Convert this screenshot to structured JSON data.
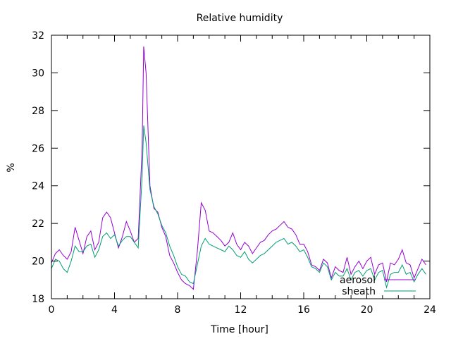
{
  "chart_data": {
    "type": "line",
    "title": "Relative humidity",
    "xlabel": "Time [hour]",
    "ylabel": "%",
    "xlim": [
      0,
      24
    ],
    "ylim": [
      18,
      32
    ],
    "xticks": [
      "0",
      "4",
      "8",
      "12",
      "16",
      "20",
      "24"
    ],
    "yticks": [
      "18",
      "20",
      "22",
      "24",
      "26",
      "28",
      "30",
      "32"
    ],
    "legend_position": "bottom-right",
    "grid": false,
    "x": [
      0,
      0.25,
      0.5,
      0.75,
      1,
      1.25,
      1.5,
      1.75,
      2,
      2.25,
      2.5,
      2.75,
      3,
      3.25,
      3.5,
      3.75,
      4,
      4.25,
      4.5,
      4.75,
      5,
      5.25,
      5.5,
      5.75,
      5.85,
      6,
      6.25,
      6.5,
      6.75,
      7,
      7.25,
      7.5,
      7.75,
      8,
      8.25,
      8.5,
      8.75,
      9,
      9.25,
      9.5,
      9.75,
      10,
      10.25,
      10.5,
      10.75,
      11,
      11.25,
      11.5,
      11.75,
      12,
      12.25,
      12.5,
      12.75,
      13,
      13.25,
      13.5,
      13.75,
      14,
      14.25,
      14.5,
      14.75,
      15,
      15.25,
      15.5,
      15.75,
      16,
      16.25,
      16.5,
      16.75,
      17,
      17.25,
      17.5,
      17.75,
      18,
      18.25,
      18.5,
      18.75,
      19,
      19.25,
      19.5,
      19.75,
      20,
      20.25,
      20.5,
      20.75,
      21,
      21.25,
      21.5,
      21.75,
      22,
      22.25,
      22.5,
      22.75,
      23,
      23.25,
      23.5,
      23.75
    ],
    "series": [
      {
        "name": "aerosol",
        "color": "#9400d3",
        "values": [
          19.9,
          20.4,
          20.6,
          20.3,
          20.1,
          20.5,
          21.8,
          21.1,
          20.4,
          21.3,
          21.6,
          20.6,
          21.0,
          22.3,
          22.6,
          22.3,
          21.5,
          20.7,
          21.3,
          22.1,
          21.6,
          21.0,
          21.2,
          26.0,
          31.4,
          30.0,
          24.0,
          22.8,
          22.6,
          21.8,
          21.3,
          20.3,
          19.9,
          19.4,
          19.0,
          18.8,
          18.7,
          18.5,
          20.5,
          23.1,
          22.7,
          21.6,
          21.5,
          21.3,
          21.1,
          20.8,
          21.0,
          21.5,
          20.9,
          20.6,
          21.0,
          20.8,
          20.4,
          20.7,
          21.0,
          21.1,
          21.4,
          21.6,
          21.7,
          21.9,
          22.1,
          21.8,
          21.7,
          21.4,
          20.9,
          20.9,
          20.5,
          19.8,
          19.7,
          19.5,
          20.1,
          19.9,
          19.1,
          19.7,
          19.5,
          19.4,
          20.2,
          19.3,
          19.7,
          20.0,
          19.6,
          20.0,
          20.2,
          19.3,
          19.8,
          19.9,
          18.9,
          19.9,
          19.8,
          20.1,
          20.6,
          19.9,
          19.8,
          19.1,
          19.6,
          20.1,
          19.8
        ]
      },
      {
        "name": "sheath",
        "color": "#009e73",
        "values": [
          19.6,
          20.1,
          20.0,
          19.6,
          19.4,
          20.0,
          20.8,
          20.5,
          20.5,
          20.8,
          20.9,
          20.2,
          20.6,
          21.3,
          21.5,
          21.2,
          21.4,
          20.8,
          21.1,
          21.3,
          21.3,
          21.0,
          20.7,
          24.5,
          27.2,
          26.3,
          23.8,
          22.9,
          22.5,
          21.9,
          21.5,
          20.8,
          20.3,
          19.7,
          19.3,
          19.2,
          18.9,
          18.8,
          19.8,
          20.8,
          21.2,
          20.9,
          20.8,
          20.7,
          20.6,
          20.5,
          20.8,
          20.6,
          20.3,
          20.2,
          20.5,
          20.1,
          19.9,
          20.1,
          20.3,
          20.4,
          20.6,
          20.8,
          21.0,
          21.1,
          21.2,
          20.9,
          21.0,
          20.8,
          20.5,
          20.6,
          20.2,
          19.7,
          19.6,
          19.4,
          19.9,
          19.7,
          19.0,
          19.4,
          19.2,
          19.2,
          19.6,
          19.0,
          19.4,
          19.5,
          19.2,
          19.5,
          19.6,
          19.0,
          19.4,
          19.5,
          18.6,
          19.3,
          19.4,
          19.4,
          19.8,
          19.3,
          19.4,
          18.9,
          19.3,
          19.6,
          19.3
        ]
      }
    ]
  }
}
